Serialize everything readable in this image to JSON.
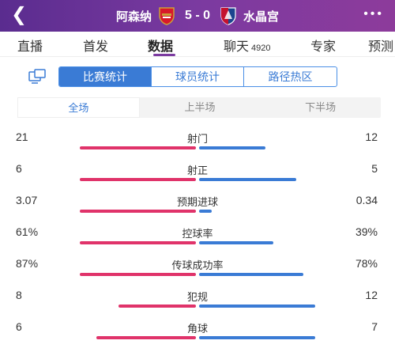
{
  "header": {
    "home_team": "阿森纳",
    "score": "5 - 0",
    "away_team": "水晶宫",
    "back_icon": "chevron-left-icon",
    "more_icon": "more-dots-icon"
  },
  "tabs": [
    {
      "label": "直播"
    },
    {
      "label": "首发"
    },
    {
      "label": "数据"
    },
    {
      "label": "聊天",
      "count": "4920"
    },
    {
      "label": "专家"
    },
    {
      "label": "预测"
    }
  ],
  "subtabs": [
    "比赛统计",
    "球员统计",
    "路径热区"
  ],
  "periods": [
    "全场",
    "上半场",
    "下半场"
  ],
  "colors": {
    "home": "#e0336a",
    "away": "#3a7bd5",
    "accent": "#7b3aa0"
  },
  "stats": [
    {
      "label": "射门",
      "left": "21",
      "right": "12",
      "left_share": 0.636,
      "right_share": 0.364
    },
    {
      "label": "射正",
      "left": "6",
      "right": "5",
      "left_share": 0.545,
      "right_share": 0.455
    },
    {
      "label": "预期进球",
      "left": "3.07",
      "right": "0.34",
      "left_share": 0.9,
      "right_share": 0.1
    },
    {
      "label": "控球率",
      "left": "61%",
      "right": "39%",
      "left_share": 0.61,
      "right_share": 0.39
    },
    {
      "label": "传球成功率",
      "left": "87%",
      "right": "78%",
      "left_share": 0.527,
      "right_share": 0.473
    },
    {
      "label": "犯规",
      "left": "8",
      "right": "12",
      "left_share": 0.4,
      "right_share": 0.6
    },
    {
      "label": "角球",
      "left": "6",
      "right": "7",
      "left_share": 0.462,
      "right_share": 0.538
    }
  ]
}
